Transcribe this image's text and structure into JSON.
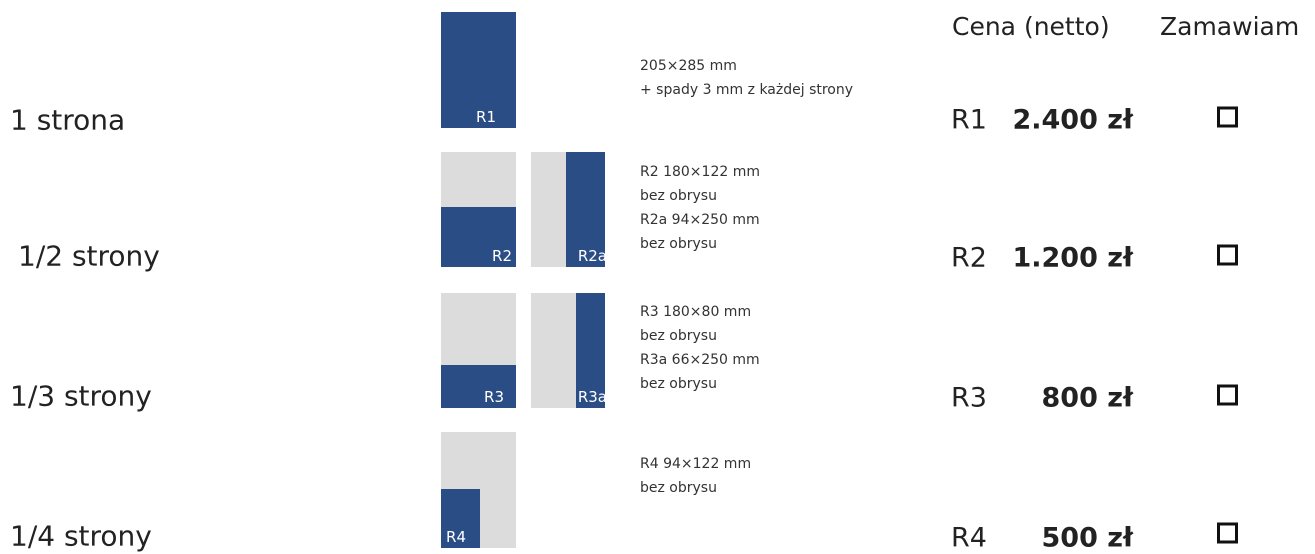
{
  "header": {
    "price": "Cena (netto)",
    "order": "Zamawiam"
  },
  "rows": [
    {
      "label": "1 strona",
      "boxes": [
        "R1"
      ],
      "description": [
        "205×285 mm",
        "+ spady 3 mm z każdej strony"
      ],
      "code": "R1",
      "price": "2.400 zł"
    },
    {
      "label": "1/2 strony",
      "boxes": [
        "R2",
        "R2a"
      ],
      "description": [
        "R2 180×122 mm",
        "bez obrysu",
        "R2a  94×250 mm",
        "bez obrysu"
      ],
      "code": "R2",
      "price": "1.200 zł"
    },
    {
      "label": "1/3 strony",
      "boxes": [
        "R3",
        "R3a"
      ],
      "description": [
        "R3 180×80 mm",
        "bez obrysu",
        "R3a  66×250 mm",
        "bez obrysu"
      ],
      "code": "R3",
      "price": "800 zł"
    },
    {
      "label": "1/4 strony",
      "boxes": [
        "R4"
      ],
      "description": [
        "R4 94×122 mm",
        "bez obrysu"
      ],
      "code": "R4",
      "price": "500 zł"
    }
  ]
}
